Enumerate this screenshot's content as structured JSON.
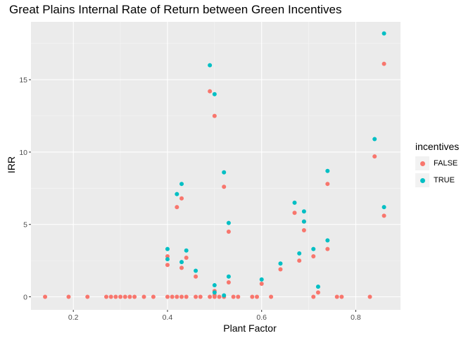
{
  "chart_data": {
    "type": "scatter",
    "title": "Great Plains Internal Rate of Return between Green Incentives",
    "xlabel": "Plant Factor",
    "ylabel": "IRR",
    "xlim": [
      0.11,
      0.895
    ],
    "ylim": [
      -0.9,
      19.0
    ],
    "x_ticks": [
      0.2,
      0.4,
      0.6,
      0.8
    ],
    "x_tick_labels": [
      "0.2",
      "0.4",
      "0.6",
      "0.8"
    ],
    "y_ticks": [
      0,
      5,
      10,
      15
    ],
    "y_tick_labels": [
      "0",
      "5",
      "10",
      "15"
    ],
    "grid": true,
    "legend": {
      "title": "incentives",
      "position": "right"
    },
    "series": [
      {
        "name": "FALSE",
        "color": "#F8766D",
        "points": [
          [
            0.14,
            0
          ],
          [
            0.19,
            0
          ],
          [
            0.23,
            0
          ],
          [
            0.27,
            0
          ],
          [
            0.28,
            0
          ],
          [
            0.29,
            0
          ],
          [
            0.3,
            0
          ],
          [
            0.31,
            0
          ],
          [
            0.32,
            0
          ],
          [
            0.33,
            0
          ],
          [
            0.35,
            0
          ],
          [
            0.37,
            0
          ],
          [
            0.4,
            0
          ],
          [
            0.41,
            0
          ],
          [
            0.42,
            0
          ],
          [
            0.43,
            0
          ],
          [
            0.44,
            0
          ],
          [
            0.46,
            0
          ],
          [
            0.47,
            0
          ],
          [
            0.49,
            0
          ],
          [
            0.5,
            0
          ],
          [
            0.51,
            0
          ],
          [
            0.52,
            0
          ],
          [
            0.54,
            0
          ],
          [
            0.55,
            0
          ],
          [
            0.58,
            0
          ],
          [
            0.59,
            0
          ],
          [
            0.62,
            0
          ],
          [
            0.71,
            0
          ],
          [
            0.76,
            0
          ],
          [
            0.77,
            0
          ],
          [
            0.83,
            0
          ],
          [
            0.4,
            2.2
          ],
          [
            0.4,
            2.8
          ],
          [
            0.42,
            6.2
          ],
          [
            0.43,
            6.8
          ],
          [
            0.43,
            2.0
          ],
          [
            0.44,
            2.7
          ],
          [
            0.46,
            1.4
          ],
          [
            0.49,
            14.2
          ],
          [
            0.5,
            12.5
          ],
          [
            0.5,
            0.4
          ],
          [
            0.5,
            0.1
          ],
          [
            0.52,
            7.6
          ],
          [
            0.53,
            4.5
          ],
          [
            0.53,
            1.0
          ],
          [
            0.6,
            0.9
          ],
          [
            0.64,
            1.9
          ],
          [
            0.67,
            5.8
          ],
          [
            0.68,
            2.5
          ],
          [
            0.69,
            5.2
          ],
          [
            0.69,
            4.6
          ],
          [
            0.71,
            2.8
          ],
          [
            0.72,
            0.3
          ],
          [
            0.74,
            7.8
          ],
          [
            0.74,
            3.3
          ],
          [
            0.84,
            9.7
          ],
          [
            0.86,
            16.1
          ],
          [
            0.86,
            5.6
          ]
        ]
      },
      {
        "name": "TRUE",
        "color": "#00BFC4",
        "points": [
          [
            0.4,
            3.3
          ],
          [
            0.4,
            2.6
          ],
          [
            0.42,
            7.1
          ],
          [
            0.43,
            7.8
          ],
          [
            0.43,
            2.4
          ],
          [
            0.44,
            3.2
          ],
          [
            0.46,
            1.8
          ],
          [
            0.49,
            16.0
          ],
          [
            0.5,
            14.0
          ],
          [
            0.5,
            0.8
          ],
          [
            0.5,
            0.3
          ],
          [
            0.52,
            8.6
          ],
          [
            0.52,
            0.1
          ],
          [
            0.53,
            5.1
          ],
          [
            0.53,
            1.4
          ],
          [
            0.6,
            1.2
          ],
          [
            0.64,
            2.3
          ],
          [
            0.67,
            6.5
          ],
          [
            0.68,
            3.0
          ],
          [
            0.69,
            5.9
          ],
          [
            0.69,
            5.2
          ],
          [
            0.71,
            3.3
          ],
          [
            0.72,
            0.7
          ],
          [
            0.74,
            8.7
          ],
          [
            0.74,
            3.9
          ],
          [
            0.84,
            10.9
          ],
          [
            0.86,
            18.2
          ],
          [
            0.86,
            6.2
          ]
        ]
      }
    ]
  }
}
